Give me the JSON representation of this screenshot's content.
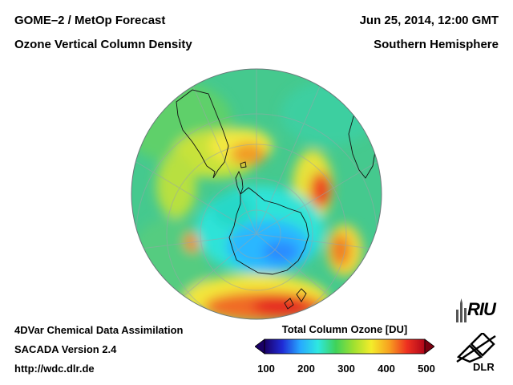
{
  "header": {
    "title_left_1": "GOME–2 / MetOp Forecast",
    "title_left_2": "Ozone Vertical Column Density",
    "title_right_1": "Jun 25, 2014, 12:00 GMT",
    "title_right_2": "Southern Hemisphere"
  },
  "footer": {
    "line1": "4DVar Chemical Data Assimilation",
    "line2": "SACADA Version 2.4",
    "line3": "http://wdc.dlr.de"
  },
  "colorbar": {
    "title": "Total Column Ozone [DU]",
    "ticks": [
      "100",
      "200",
      "300",
      "400",
      "500"
    ],
    "colors": [
      "#1a0066",
      "#1f2bd6",
      "#27a8ff",
      "#2ee8e0",
      "#3fd25a",
      "#9fe030",
      "#f4ec2a",
      "#f7a020",
      "#ee3020",
      "#b0061a"
    ]
  },
  "logos": {
    "riu_text": "RIU",
    "dlr_text": "DLR"
  },
  "map": {
    "projection": "orthographic",
    "hemisphere": "Southern Hemisphere",
    "background_color": "#44c890"
  }
}
